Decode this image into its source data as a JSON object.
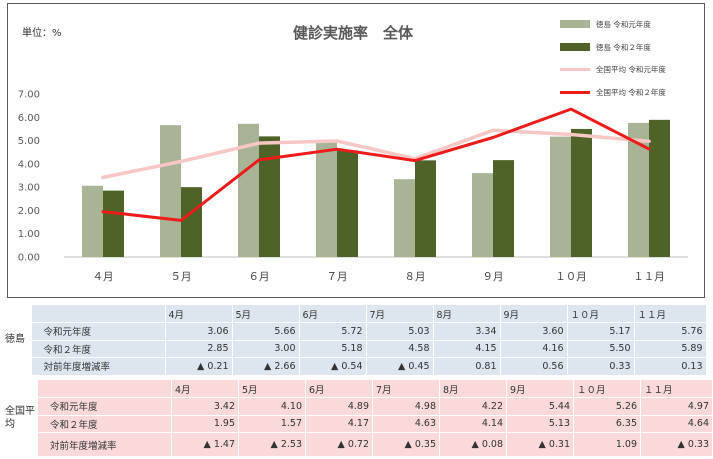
{
  "unit_label": "単位：%",
  "colors": {
    "tokushima_r1": "#a9b395",
    "tokushima_r2": "#4f6228",
    "national_r1": "#f6c7c5",
    "national_r2": "#ee1b1b",
    "tokushima_table_bg": "#dde5ef",
    "national_table_bg": "#f9d9da"
  },
  "chart_data": {
    "type": "bar",
    "title": "健診実施率　全体",
    "categories": [
      "４月",
      "５月",
      "６月",
      "７月",
      "８月",
      "９月",
      "１０月",
      "１１月"
    ],
    "ylim": [
      0,
      7
    ],
    "yticks": [
      "0.00",
      "1.00",
      "2.00",
      "3.00",
      "4.00",
      "5.00",
      "6.00",
      "7.00"
    ],
    "grid": false,
    "legend_position": "top-right",
    "series": [
      {
        "name": "徳島 令和元年度",
        "kind": "bar",
        "color": "#a9b395",
        "values": [
          3.06,
          5.66,
          5.72,
          5.03,
          3.34,
          3.6,
          5.17,
          5.76
        ]
      },
      {
        "name": "徳島 令和２年度",
        "kind": "bar",
        "color": "#4f6228",
        "values": [
          2.85,
          3.0,
          5.18,
          4.58,
          4.15,
          4.16,
          5.5,
          5.89
        ]
      },
      {
        "name": "全国平均 令和元年度",
        "kind": "line",
        "color": "#f6c7c5",
        "values": [
          3.42,
          4.1,
          4.89,
          4.98,
          4.22,
          5.44,
          5.26,
          4.97
        ]
      },
      {
        "name": "全国平均 令和２年度",
        "kind": "line",
        "color": "#ee1b1b",
        "values": [
          1.95,
          1.57,
          4.17,
          4.63,
          4.14,
          5.13,
          6.35,
          4.64
        ]
      }
    ]
  },
  "table": {
    "months": [
      "4月",
      "5月",
      "6月",
      "7月",
      "8月",
      "9月",
      "１０月",
      "１１月"
    ],
    "tokushima": {
      "region": "徳島",
      "rows": [
        {
          "label": "令和元年度",
          "values": [
            "3.06",
            "5.66",
            "5.72",
            "5.03",
            "3.34",
            "3.60",
            "5.17",
            "5.76"
          ]
        },
        {
          "label": "令和２年度",
          "values": [
            "2.85",
            "3.00",
            "5.18",
            "4.58",
            "4.15",
            "4.16",
            "5.50",
            "5.89"
          ]
        },
        {
          "label": "対前年度増減率",
          "values": [
            "▲ 0.21",
            "▲ 2.66",
            "▲ 0.54",
            "▲ 0.45",
            "0.81",
            "0.56",
            "0.33",
            "0.13"
          ]
        }
      ]
    },
    "national": {
      "region": "全国平\n均",
      "rows": [
        {
          "label": "令和元年度",
          "values": [
            "3.42",
            "4.10",
            "4.89",
            "4.98",
            "4.22",
            "5.44",
            "5.26",
            "4.97"
          ]
        },
        {
          "label": "令和２年度",
          "values": [
            "1.95",
            "1.57",
            "4.17",
            "4.63",
            "4.14",
            "5.13",
            "6.35",
            "4.64"
          ]
        },
        {
          "label": "対前年度増減率",
          "values": [
            "▲ 1.47",
            "▲ 2.53",
            "▲ 0.72",
            "▲ 0.35",
            "▲ 0.08",
            "▲ 0.31",
            "1.09",
            "▲ 0.33"
          ]
        }
      ]
    }
  }
}
